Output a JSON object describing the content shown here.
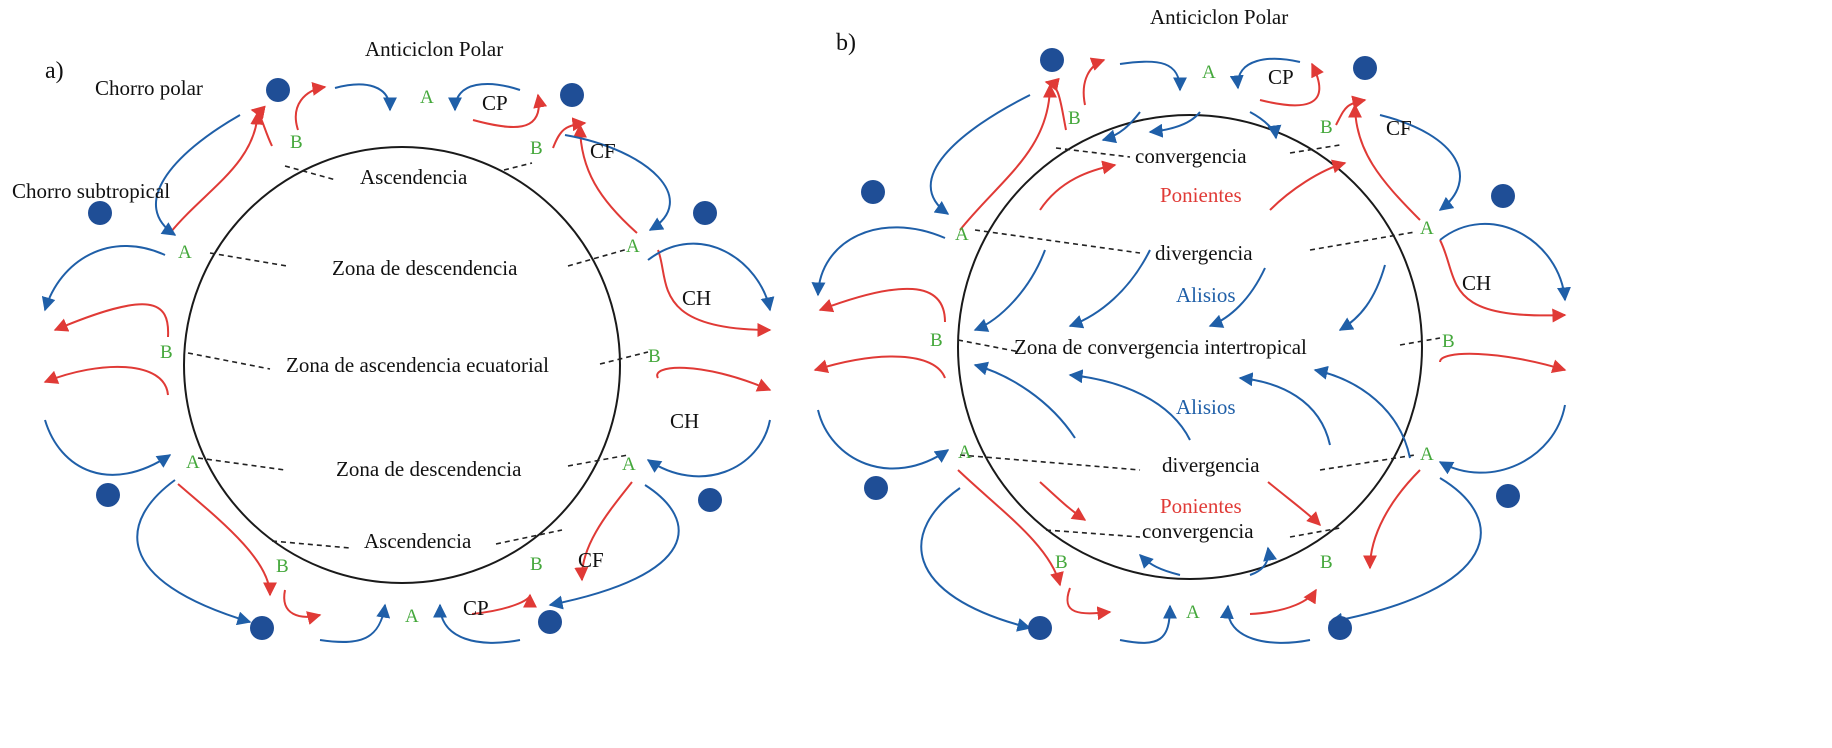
{
  "colors": {
    "red": "#e03a36",
    "blue": "#1f5fa8",
    "green": "#45a83c",
    "marker": "#1f4e96"
  },
  "panel_a": {
    "tag": "a)",
    "anticyclone": "Anticiclon Polar",
    "polar_jet": "Chorro polar",
    "subtropical_jet": "Chorro subtropical",
    "cell_cp": "CP",
    "cell_cf": "CF",
    "cell_ch": "CH",
    "ascent": "Ascendencia",
    "descent_zone": "Zona de descendencia",
    "equatorial_ascent": "Zona de ascendencia ecuatorial",
    "pressure_a": "A",
    "pressure_b": "B"
  },
  "panel_b": {
    "tag": "b)",
    "anticyclone": "Anticiclon Polar",
    "cell_cp": "CP",
    "cell_cf": "CF",
    "cell_ch": "CH",
    "convergence": "convergencia",
    "westerlies": "Ponientes",
    "divergence": "divergencia",
    "trades": "Alisios",
    "itcz": "Zona de convergencia intertropical",
    "pressure_a": "A",
    "pressure_b": "B"
  }
}
